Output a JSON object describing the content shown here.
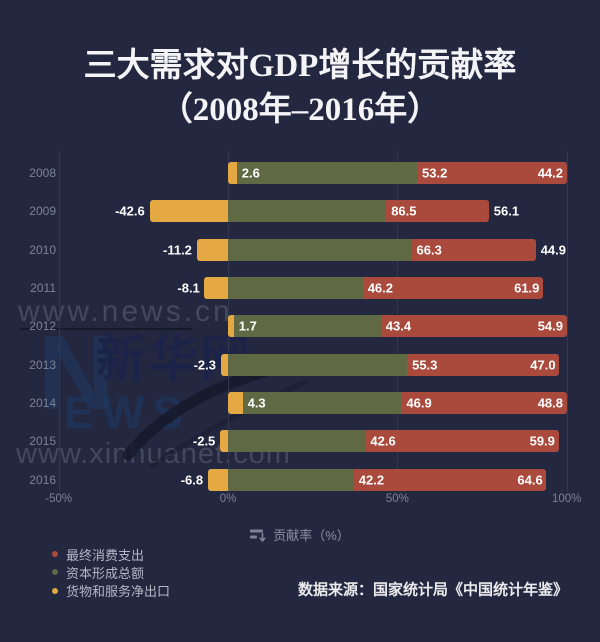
{
  "title": {
    "line1": "三大需求对GDP增长的贡献率",
    "line2": "（2008年–2016年）"
  },
  "chart_data": {
    "type": "bar",
    "orientation": "horizontal",
    "stacked": true,
    "normalized_row_length": true,
    "categories": [
      "2008",
      "2009",
      "2010",
      "2011",
      "2012",
      "2013",
      "2014",
      "2015",
      "2016"
    ],
    "series": [
      {
        "id": "net-exports",
        "name": "货物和服务净出口",
        "color": "#e4a943",
        "values": [
          2.6,
          -42.6,
          -11.2,
          -8.1,
          1.7,
          -2.3,
          4.3,
          -2.5,
          -6.8
        ]
      },
      {
        "id": "capital-formation",
        "name": "资本形成总额",
        "color": "#5f6a44",
        "values": [
          53.2,
          86.5,
          66.3,
          46.2,
          43.4,
          55.3,
          46.9,
          42.6,
          42.2
        ]
      },
      {
        "id": "consumption",
        "name": "最终消费支出",
        "color": "#a94a3d",
        "values": [
          44.2,
          56.1,
          44.9,
          61.9,
          54.9,
          47.0,
          48.8,
          59.9,
          64.6
        ]
      }
    ],
    "x_axis": {
      "tick_labels": [
        "-50%",
        "0%",
        "50%",
        "100%"
      ],
      "tick_values": [
        -50,
        0,
        50,
        100
      ]
    },
    "axis_caption": "贡献率（%）",
    "legend": [
      {
        "label": "最终消费支出",
        "color": "#a94a3d"
      },
      {
        "label": "资本形成总额",
        "color": "#5f6a44"
      },
      {
        "label": "货物和服务净出口",
        "color": "#e4a943"
      }
    ],
    "grid": true,
    "legend_position": "bottom-left"
  },
  "source_note": "数据来源：国家统计局《中国统计年鉴》",
  "watermarks": {
    "news_url": "www.news.cn",
    "brand_n": "N",
    "brand_cjk": "新华网",
    "brand_ews": "EWS",
    "xinhuanet_url": "www.xinhuanet.com"
  },
  "colors": {
    "background": "#242740",
    "gridline": "#313850",
    "value_label": "#ffffff",
    "axis_text": "#7a8399",
    "legend_text": "#b2b8c6",
    "title_text": "#f4f4f6",
    "source_text": "#ebebed",
    "watermark_blue": "#1d3a63",
    "watermark_gray": "#464c61"
  }
}
